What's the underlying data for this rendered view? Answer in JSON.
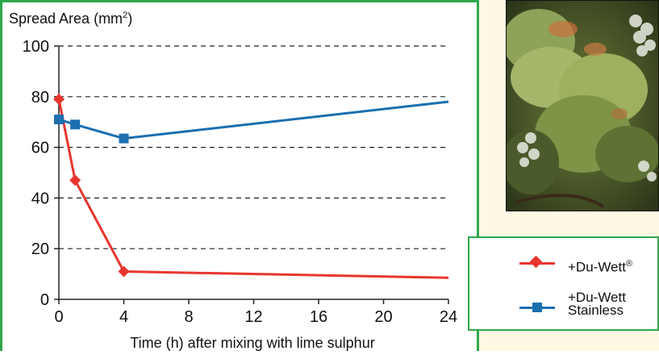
{
  "chart_data": {
    "type": "line",
    "ylabel": "Spread Area (mm",
    "ylabel_sup": "2",
    "ylabel_close": ")",
    "xlabel": "Time (h) after mixing with lime sulphur",
    "xlim": [
      0,
      24
    ],
    "ylim": [
      0,
      100
    ],
    "xticks": [
      0,
      4,
      8,
      12,
      16,
      20,
      24
    ],
    "yticks": [
      0,
      20,
      40,
      60,
      80,
      100
    ],
    "grid": "dashed horizontal",
    "series": [
      {
        "name": "+Du-Wett",
        "name_sup": "®",
        "color": "#e8362f",
        "marker": "diamond",
        "x": [
          0,
          1,
          4,
          24
        ],
        "y": [
          79,
          47,
          11,
          8.5
        ]
      },
      {
        "name": "+Du-Wett Stainless",
        "name_lines": [
          "+Du-Wett",
          "Stainless"
        ],
        "color": "#1b6fb0",
        "marker": "square",
        "x": [
          0,
          1,
          4,
          24
        ],
        "y": [
          71,
          69,
          63.5,
          78
        ]
      }
    ],
    "legend_position": "right"
  },
  "photo": {
    "subject": "grapevine-leaves-with-grapes"
  }
}
